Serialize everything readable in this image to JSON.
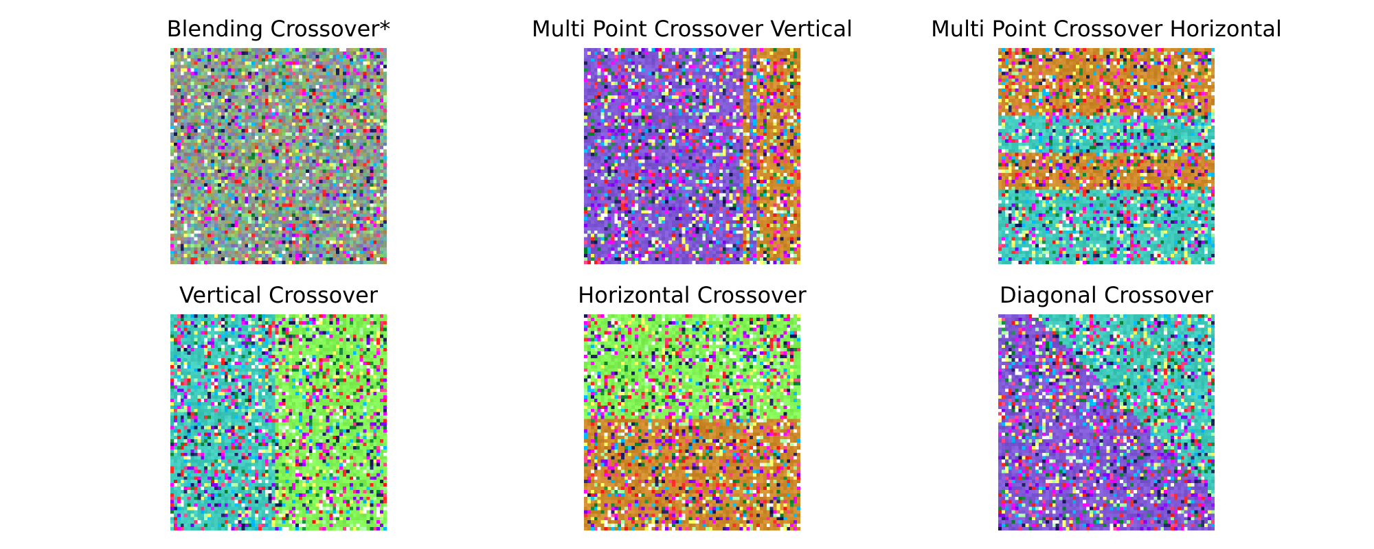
{
  "figure": {
    "panels": [
      {
        "title": "Blending Crossover*",
        "pattern": "blend",
        "colors": [
          "#7f58d6",
          "#3fcabb",
          "#82f456",
          "#cf8a2b"
        ]
      },
      {
        "title": "Multi Point Crossover Vertical",
        "pattern": "vertical-multi",
        "colors": [
          "#7f58d6",
          "#cf8a2b"
        ]
      },
      {
        "title": "Multi Point Crossover Horizontal",
        "pattern": "horizontal-multi",
        "colors": [
          "#cf8a2b",
          "#3fcabb"
        ]
      },
      {
        "title": "Vertical Crossover",
        "pattern": "vertical",
        "colors": [
          "#3fcabb",
          "#82f456"
        ]
      },
      {
        "title": "Horizontal Crossover",
        "pattern": "horizontal",
        "colors": [
          "#82f456",
          "#cf8a2b"
        ]
      },
      {
        "title": "Diagonal Crossover",
        "pattern": "diagonal",
        "colors": [
          "#3fcabb",
          "#7f58d6"
        ]
      }
    ],
    "noise_colors": [
      "#ff00ff",
      "#ffff66",
      "#202060",
      "#ff4488",
      "#ffffff",
      "#00bbff",
      "#8800ff",
      "#118833",
      "#ff2222",
      "#aaffaa"
    ]
  }
}
